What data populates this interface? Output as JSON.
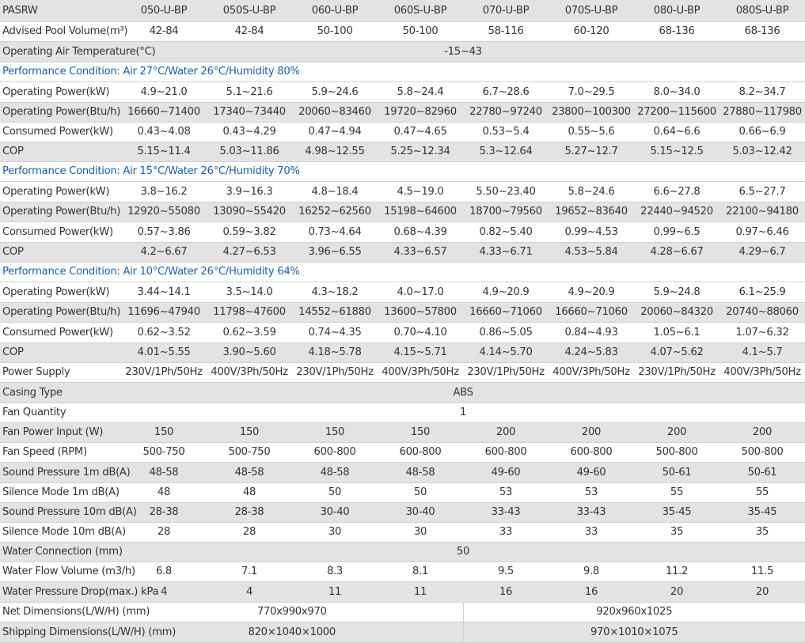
{
  "header": {
    "label": "PASRW",
    "models": [
      "050-U-BP",
      "050S-U-BP",
      "060-U-BP",
      "060S-U-BP",
      "070-U-BP",
      "070S-U-BP",
      "080-U-BP",
      "080S-U-BP"
    ]
  },
  "rows": [
    {
      "type": "data",
      "label": "Advised Pool Volume(m³)",
      "values": [
        "42-84",
        "42-84",
        "50-100",
        "50-100",
        "58-116",
        "60-120",
        "68-136",
        "68-136"
      ]
    },
    {
      "type": "span",
      "label": "Operating Air Temperature(°C)",
      "value": "-15~43"
    },
    {
      "type": "section",
      "label": "Performance Condition: Air 27°C/Water 26°C/Humidity 80%"
    },
    {
      "type": "data",
      "label": "Operating Power(kW)",
      "values": [
        "4.9~21.0",
        "5.1~21.6",
        "5.9~24.6",
        "5.8~24.4",
        "6.7~28.6",
        "7.0~29.5",
        "8.0~34.0",
        "8.2~34.7"
      ]
    },
    {
      "type": "data",
      "label": "Operating Power(Btu/h)",
      "values": [
        "16660~71400",
        "17340~73440",
        "20060~83460",
        "19720~82960",
        "22780~97240",
        "23800~100300",
        "27200~115600",
        "27880~117980"
      ]
    },
    {
      "type": "data",
      "label": "Consumed Power(kW)",
      "values": [
        "0.43~4.08",
        "0.43~4.29",
        "0.47~4.94",
        "0.47~4.65",
        "0.53~5.4",
        "0.55~5.6",
        "0.64~6.6",
        "0.66~6.9"
      ]
    },
    {
      "type": "data",
      "label": "COP",
      "values": [
        "5.15~11.4",
        "5.03~11.86",
        "4.98~12.55",
        "5.25~12.34",
        "5.3~12.64",
        "5.27~12.7",
        "5.15~12.5",
        "5.03~12.42"
      ]
    },
    {
      "type": "section",
      "label": "Performance Condition: Air 15°C/Water 26°C/Humidity 70%"
    },
    {
      "type": "data",
      "label": "Operating Power(kW)",
      "values": [
        "3.8~16.2",
        "3.9~16.3",
        "4.8~18.4",
        "4.5~19.0",
        "5.50~23.40",
        "5.8~24.6",
        "6.6~27.8",
        "6.5~27.7"
      ]
    },
    {
      "type": "data",
      "label": "Operating Power(Btu/h)",
      "values": [
        "12920~55080",
        "13090~55420",
        "16252~62560",
        "15198~64600",
        "18700~79560",
        "19652~83640",
        "22440~94520",
        "22100~94180"
      ]
    },
    {
      "type": "data",
      "label": "Consumed Power(kW)",
      "values": [
        "0.57~3.86",
        "0.59~3.82",
        "0.73~4.64",
        "0.68~4.39",
        "0.82~5.40",
        "0.99~4.53",
        "0.99~6.5",
        "0.97~6.46"
      ]
    },
    {
      "type": "data",
      "label": "COP",
      "values": [
        "4.2~6.67",
        "4.27~6.53",
        "3.96~6.55",
        "4.33~6.57",
        "4.33~6.71",
        "4.53~5.84",
        "4.28~6.67",
        "4.29~6.7"
      ]
    },
    {
      "type": "section",
      "label": "Performance Condition: Air 10°C/Water 26°C/Humidity 64%"
    },
    {
      "type": "data",
      "label": "Operating Power(kW)",
      "values": [
        "3.44~14.1",
        "3.5~14.0",
        "4.3~18.2",
        "4.0~17.0",
        "4.9~20.9",
        "4.9~20.9",
        "5.9~24.8",
        "6.1~25.9"
      ]
    },
    {
      "type": "data",
      "label": "Operating Power(Btu/h)",
      "values": [
        "11696~47940",
        "11798~47600",
        "14552~61880",
        "13600~57800",
        "16660~71060",
        "16660~71060",
        "20060~84320",
        "20740~88060"
      ]
    },
    {
      "type": "data",
      "label": "Consumed Power(kW)",
      "values": [
        "0.62~3.52",
        "0.62~3.59",
        "0.74~4.35",
        "0.70~4.10",
        "0.86~5.05",
        "0.84~4.93",
        "1.05~6.1",
        "1.07~6.32"
      ]
    },
    {
      "type": "data",
      "label": "COP",
      "values": [
        "4.01~5.55",
        "3.90~5.60",
        "4.18~5.78",
        "4.15~5.71",
        "4.14~5.70",
        "4.24~5.83",
        "4.07~5.62",
        "4.1~5.7"
      ]
    },
    {
      "type": "data",
      "label": "Power Supply",
      "values": [
        "230V/1Ph/50Hz",
        "400V/3Ph/50Hz",
        "230V/1Ph/50Hz",
        "400V/3Ph/50Hz",
        "230V/1Ph/50Hz",
        "400V/3Ph/50Hz",
        "230V/1Ph/50Hz",
        "400V/3Ph/50Hz"
      ]
    },
    {
      "type": "span",
      "label": "Casing Type",
      "value": "ABS"
    },
    {
      "type": "span",
      "label": "Fan Quantity",
      "value": "1"
    },
    {
      "type": "data",
      "label": "Fan Power Input (W)",
      "values": [
        "150",
        "150",
        "150",
        "150",
        "200",
        "200",
        "200",
        "200"
      ]
    },
    {
      "type": "data",
      "label": "Fan Speed (RPM)",
      "values": [
        "500-750",
        "500-750",
        "600-800",
        "600-800",
        "600-800",
        "600-800",
        "500-800",
        "500-800"
      ]
    },
    {
      "type": "data",
      "label": "Sound Pressure 1m dB(A)",
      "values": [
        "48-58",
        "48-58",
        "48-58",
        "48-58",
        "49-60",
        "49-60",
        "50-61",
        "50-61"
      ]
    },
    {
      "type": "data",
      "label": "Silence Mode 1m dB(A)",
      "values": [
        "48",
        "48",
        "50",
        "50",
        "53",
        "53",
        "55",
        "55"
      ]
    },
    {
      "type": "data",
      "label": "Sound Pressure 10m dB(A)",
      "values": [
        "28-38",
        "28-38",
        "30-40",
        "30-40",
        "33-43",
        "33-43",
        "35-45",
        "35-45"
      ]
    },
    {
      "type": "data",
      "label": "Silence Mode 10m dB(A)",
      "values": [
        "28",
        "28",
        "30",
        "30",
        "33",
        "33",
        "35",
        "35"
      ]
    },
    {
      "type": "span",
      "label": "Water Connection (mm)",
      "value": "50"
    },
    {
      "type": "data",
      "label": "Water Flow Volume (m3/h)",
      "values": [
        "6.8",
        "7.1",
        "8.3",
        "8.1",
        "9.5",
        "9.8",
        "11.2",
        "11.5"
      ]
    },
    {
      "type": "data",
      "label": "Water Pressure Drop(max.) kPa",
      "values": [
        "4",
        "4",
        "11",
        "11",
        "16",
        "16",
        "20",
        "20"
      ]
    },
    {
      "type": "split",
      "label": "Net Dimensions(L/W/H) (mm)",
      "values": [
        "770x990x970",
        "920x960x1025"
      ]
    },
    {
      "type": "split",
      "label": "Shipping Dimensions(L/W/H) (mm)",
      "values": [
        "820×1040×1000",
        "970×1010×1075"
      ]
    }
  ]
}
